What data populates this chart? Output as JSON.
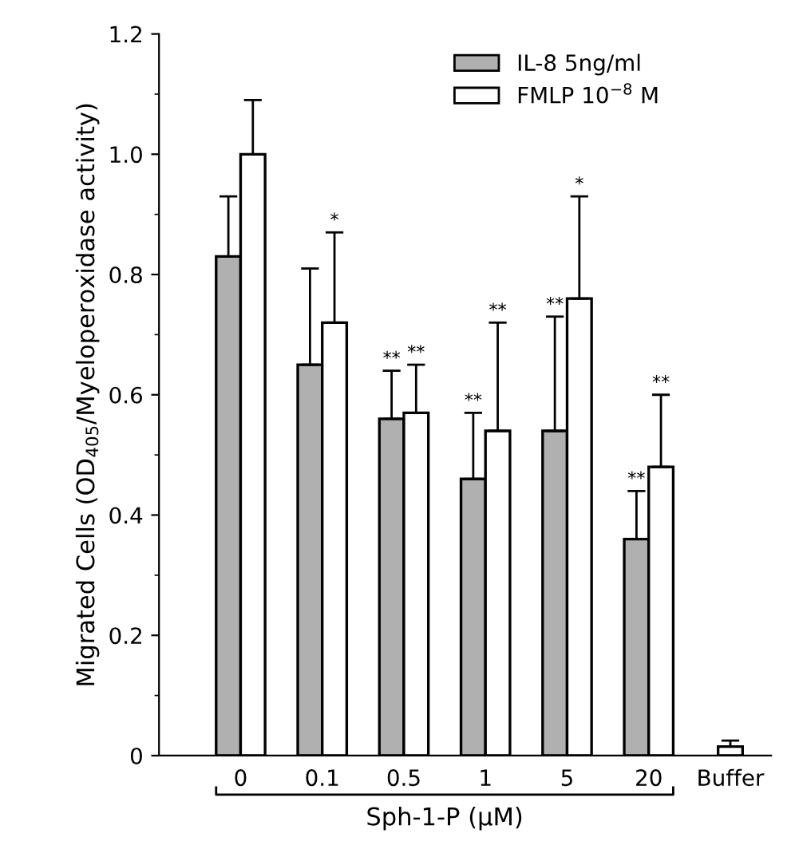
{
  "chart_data": {
    "type": "bar",
    "ylabel": "Migrated Cells (OD$_{405}$/Myeloperoxidase activity)",
    "xlabel": "Sph-1-P (μM)",
    "categories": [
      "0",
      "0.1",
      "0.5",
      "1",
      "5",
      "20",
      "Buffer"
    ],
    "series": [
      {
        "name": "IL-8 5ng/ml",
        "color": "#b0b0b0",
        "values": [
          0.83,
          0.65,
          0.56,
          0.46,
          0.54,
          0.36,
          null
        ],
        "errors": [
          [
            0.83,
            0.93
          ],
          [
            0.65,
            0.81
          ],
          [
            0.56,
            0.64
          ],
          [
            0.46,
            0.57
          ],
          [
            0.54,
            0.73
          ],
          [
            0.36,
            0.44
          ],
          null
        ]
      },
      {
        "name": "FMLP 10$^{−8}$ M",
        "color": "#ffffff",
        "values": [
          1.0,
          0.72,
          0.57,
          0.54,
          0.76,
          0.48,
          0.015
        ],
        "errors": [
          [
            1.0,
            1.09
          ],
          [
            0.72,
            0.87
          ],
          [
            0.57,
            0.65
          ],
          [
            0.54,
            0.72
          ],
          [
            0.76,
            0.93
          ],
          [
            0.48,
            0.6
          ],
          [
            0.015,
            0.025
          ]
        ]
      }
    ],
    "annotations": [
      {
        "text": "*",
        "x": "0.1",
        "y": 0.87
      },
      {
        "text": "**",
        "x": "0.5",
        "y": 0.64
      },
      {
        "text": "**",
        "x": "0.5",
        "y": 0.65
      },
      {
        "text": "**",
        "x": "1",
        "y": 0.57
      },
      {
        "text": "**",
        "x": "1",
        "y": 0.72
      },
      {
        "text": "**",
        "x": "5",
        "y": 0.73
      },
      {
        "text": "*",
        "x": "5",
        "y": 0.93
      },
      {
        "text": "**",
        "x": "20",
        "y": 0.44
      },
      {
        "text": "**",
        "x": "20",
        "y": 0.6
      }
    ],
    "ylim": [
      0,
      1.2
    ],
    "yticks": [
      {
        "value": 0,
        "label": "0"
      },
      0.2,
      0.4,
      0.6,
      0.8,
      {
        "value": 1.0,
        "label": "1.0"
      },
      1.2
    ],
    "legend": "top right",
    "grid": false
  }
}
